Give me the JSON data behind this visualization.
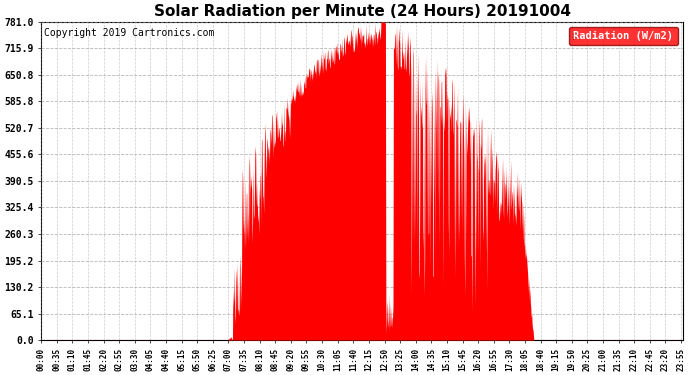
{
  "title": "Solar Radiation per Minute (24 Hours) 20191004",
  "copyright": "Copyright 2019 Cartronics.com",
  "legend_label": "Radiation (W/m2)",
  "yticks": [
    0.0,
    65.1,
    130.2,
    195.2,
    260.3,
    325.4,
    390.5,
    455.6,
    520.7,
    585.8,
    650.8,
    715.9,
    781.0
  ],
  "ylim": [
    0.0,
    781.0
  ],
  "fill_color": "#FF0000",
  "line_color": "#FF0000",
  "background_color": "#FFFFFF",
  "grid_color": "#999999",
  "dashed_line_color": "#FF0000",
  "title_fontsize": 11,
  "copyright_fontsize": 7,
  "legend_bg": "#FF0000",
  "legend_text_color": "#FFFFFF",
  "tick_interval_minutes": 35
}
